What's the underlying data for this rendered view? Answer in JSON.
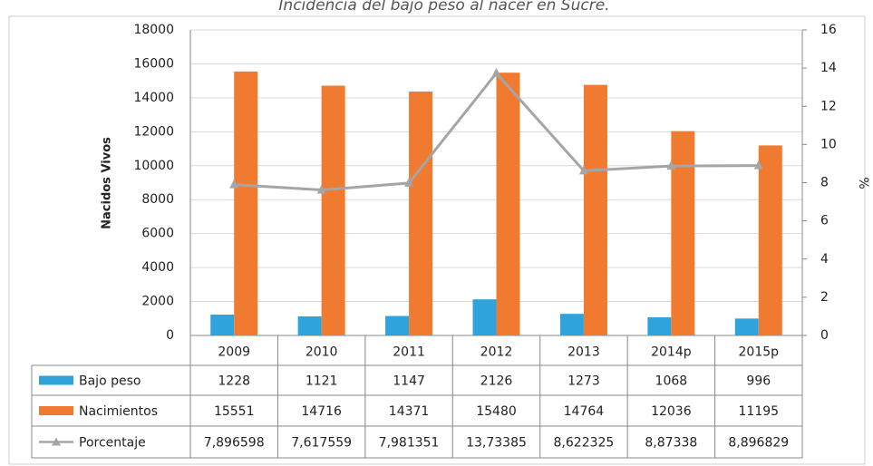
{
  "chart_data": {
    "type": "bar",
    "title": "Incidencia del bajo peso al nacer en Sucre.",
    "categories": [
      "2009",
      "2010",
      "2011",
      "2012",
      "2013",
      "2014p",
      "2015p"
    ],
    "ylabel": "Nacidos Vivos",
    "y2label": "%",
    "ylim": [
      0,
      18000
    ],
    "yticks": [
      0,
      2000,
      4000,
      6000,
      8000,
      10000,
      12000,
      14000,
      16000,
      18000
    ],
    "y2lim": [
      0,
      16
    ],
    "y2ticks": [
      0,
      2,
      4,
      6,
      8,
      10,
      12,
      14,
      16
    ],
    "grid": true,
    "series": [
      {
        "name": "Bajo peso",
        "type": "bar",
        "color": "#2ea3dc",
        "values": [
          1228,
          1121,
          1147,
          2126,
          1273,
          1068,
          996
        ]
      },
      {
        "name": "Nacimientos",
        "type": "bar",
        "color": "#f07a2f",
        "values": [
          15551,
          14716,
          14371,
          15480,
          14764,
          12036,
          11195
        ]
      },
      {
        "name": "Porcentaje",
        "type": "line",
        "axis": "y2",
        "color": "#a5a5a5",
        "values": [
          7.896598,
          7.617559,
          7.981351,
          13.73385,
          8.622325,
          8.87338,
          8.896829
        ],
        "value_labels": [
          "7,896598",
          "7,617559",
          "7,981351",
          "13,73385",
          "8,622325",
          "8,87338",
          "8,896829"
        ]
      }
    ]
  }
}
